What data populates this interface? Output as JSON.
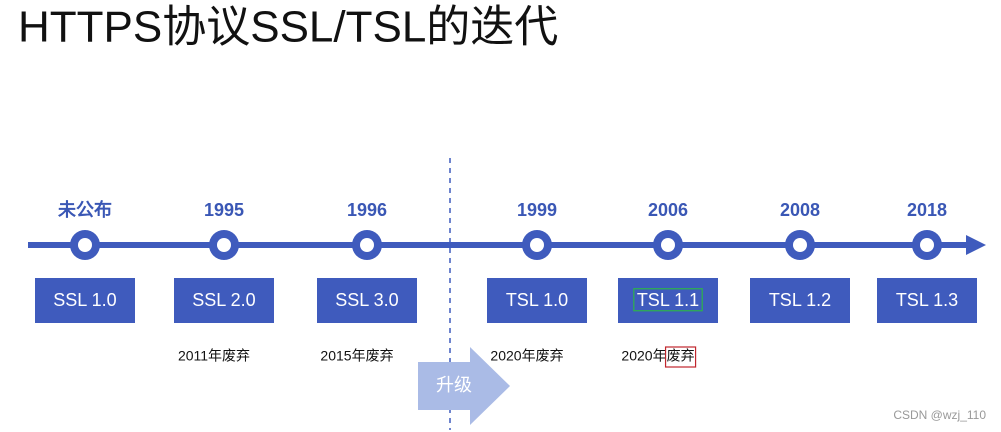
{
  "title": "HTTPS协议SSL/TSL的迭代",
  "nodes": [
    {
      "year": "未公布",
      "label": "SSL 1.0"
    },
    {
      "year": "1995",
      "label": "SSL 2.0",
      "note": "2011年废弃"
    },
    {
      "year": "1996",
      "label": "SSL 3.0",
      "note": "2015年废弃"
    },
    {
      "year": "1999",
      "label": "TSL 1.0",
      "note": "2020年废弃"
    },
    {
      "year": "2006",
      "label": "TSL 1.1",
      "note": "2020年废弃"
    },
    {
      "year": "2008",
      "label": "TSL 1.2"
    },
    {
      "year": "2018",
      "label": "TSL 1.3"
    }
  ],
  "upgrade": "升级",
  "watermark": "CSDN @wzj_110"
}
